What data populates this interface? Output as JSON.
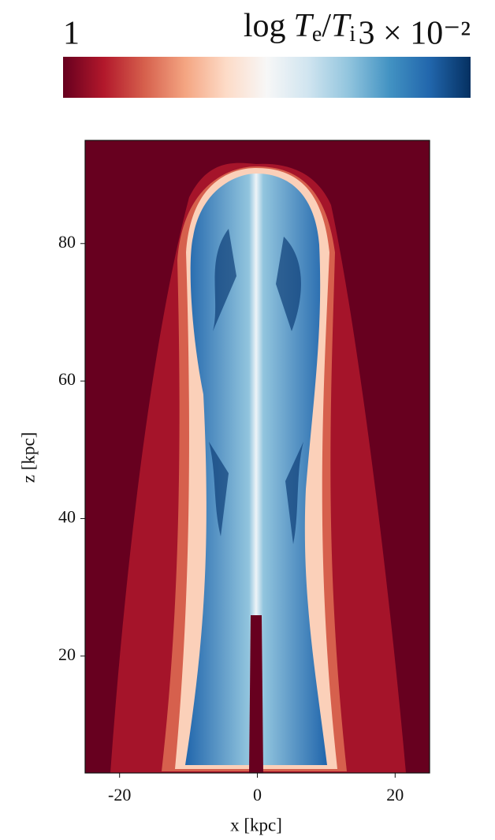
{
  "chart_data": {
    "type": "image",
    "xlabel": "x [kpc]",
    "ylabel": "z [kpc]",
    "xlim": [
      -25,
      25
    ],
    "xticks": [
      -20,
      0,
      20
    ],
    "ylim": [
      3,
      95
    ],
    "yticks": [
      20,
      40,
      60,
      80
    ],
    "colorbar": {
      "label": {
        "prefix": "log",
        "numerator": "T",
        "numerator_sub": "e",
        "separator": "/",
        "denominator": "T",
        "denominator_sub": "i"
      },
      "clim": [
        1,
        0.03
      ],
      "scale": "log",
      "ticks": [
        1,
        {
          "value": 0.03,
          "label": "3 × 10⁻²"
        }
      ],
      "colormap": [
        "#67001f",
        "#b2182b",
        "#d6604d",
        "#f4a582",
        "#fddbc7",
        "#f7f7f7",
        "#d1e5f0",
        "#92c5de",
        "#4393c3",
        "#2166ac",
        "#053061"
      ]
    }
  }
}
